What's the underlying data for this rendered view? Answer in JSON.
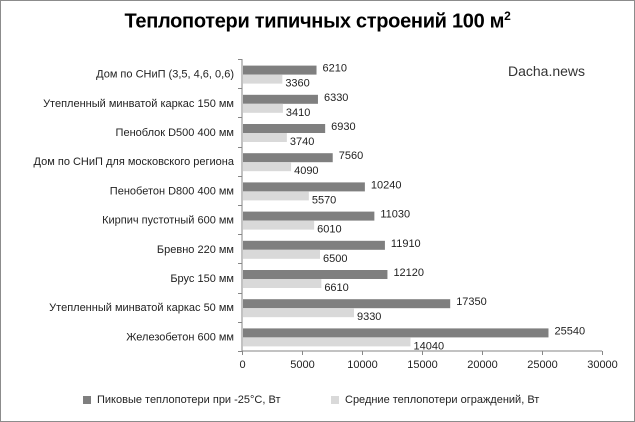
{
  "chart_data": {
    "type": "bar",
    "orientation": "horizontal",
    "title": "Теплопотери типичных строений 100 м",
    "title_superscript": "2",
    "watermark": "Dacha.news",
    "categories": [
      "Дом по СНиП (3,5, 4,6, 0,6)",
      "Утепленный минватой каркас 150 мм",
      "Пеноблок D500 400 мм",
      "Дом по СНиП для московского региона",
      "Пенобетон D800 400 мм",
      "Кирпич пустотный 600 мм",
      "Бревно 220 мм",
      "Брус 150 мм",
      "Утепленный минватой каркас  50 мм",
      "Железобетон 600 мм"
    ],
    "series": [
      {
        "name": "Пиковые теплопотери при -25°С, Вт",
        "color": "#7f7f7f",
        "values": [
          6210,
          6330,
          6930,
          7560,
          10240,
          11030,
          11910,
          12120,
          17350,
          25540
        ]
      },
      {
        "name": "Средние теплопотери ограждений, Вт",
        "color": "#d9d9d9",
        "values": [
          3360,
          3410,
          3740,
          4090,
          5570,
          6010,
          6500,
          6610,
          9330,
          14040
        ]
      }
    ],
    "xlim": [
      0,
      30000
    ],
    "xticks": [
      0,
      5000,
      10000,
      15000,
      20000,
      25000,
      30000
    ],
    "grid": false,
    "legend_position": "bottom"
  }
}
